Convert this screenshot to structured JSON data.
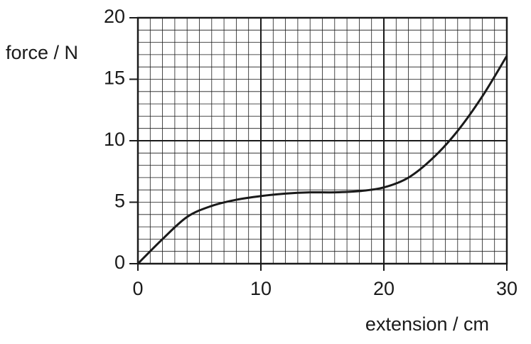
{
  "chart_data": {
    "type": "line",
    "x_label": "extension / cm",
    "y_label": "force / N",
    "x": [
      0,
      2,
      4,
      6,
      8,
      10,
      12,
      14,
      16,
      18,
      20,
      22,
      24,
      26,
      28,
      30
    ],
    "series": [
      {
        "color": "#1a1a1a",
        "values": [
          0,
          2,
          3.8,
          4.7,
          5.2,
          5.5,
          5.7,
          5.8,
          5.8,
          5.9,
          6.2,
          7,
          8.6,
          10.8,
          13.6,
          16.9
        ]
      }
    ],
    "xlim": [
      0,
      30
    ],
    "ylim": [
      0,
      20
    ],
    "xticks": [
      0,
      10,
      20,
      30
    ],
    "yticks": [
      0,
      5,
      10,
      15,
      20
    ],
    "grid": true
  }
}
